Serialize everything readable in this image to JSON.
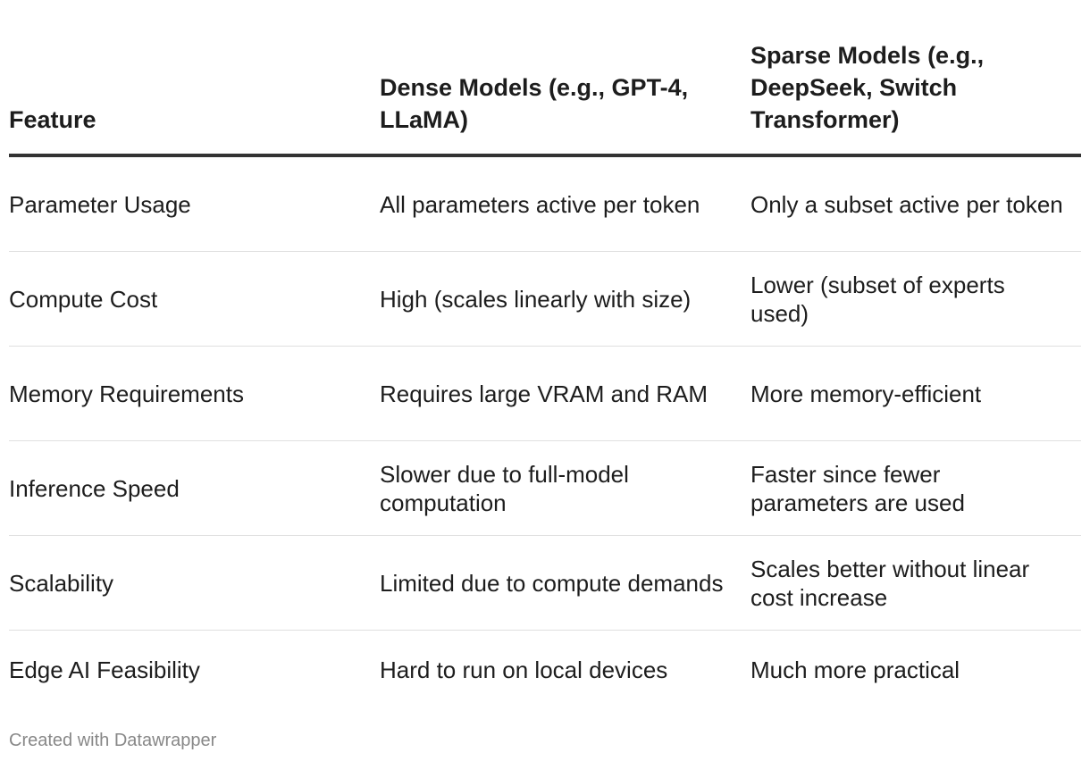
{
  "table": {
    "headers": [
      "Feature",
      "Dense Models (e.g., GPT-4, LLaMA)",
      "Sparse Models (e.g., DeepSeek, Switch Transformer)"
    ],
    "rows": [
      [
        "Parameter Usage",
        "All parameters active per token",
        "Only a subset active per token"
      ],
      [
        "Compute Cost",
        "High (scales linearly with size)",
        "Lower (subset of experts used)"
      ],
      [
        "Memory Requirements",
        "Requires large VRAM and RAM",
        "More memory-efficient"
      ],
      [
        "Inference Speed",
        "Slower due to full-model computation",
        "Faster since fewer parameters are used"
      ],
      [
        "Scalability",
        "Limited due to compute demands",
        "Scales better without linear cost increase"
      ],
      [
        "Edge AI Feasibility",
        "Hard to run on local devices",
        "Much more practical"
      ]
    ]
  },
  "footer": {
    "credit": "Created with Datawrapper"
  },
  "colors": {
    "text": "#1d1d1d",
    "header_rule": "#333333",
    "row_rule": "#e0e0e0",
    "footer_text": "#888888"
  }
}
